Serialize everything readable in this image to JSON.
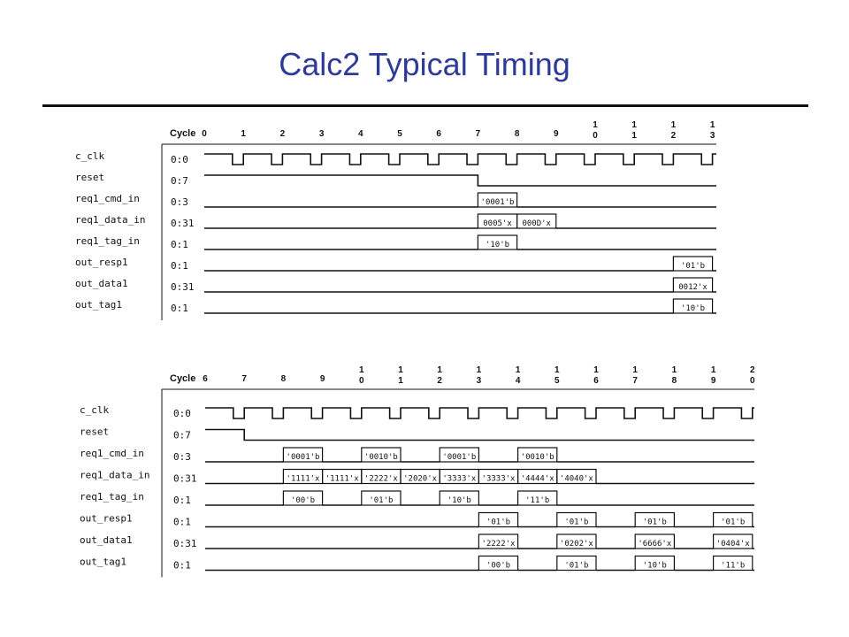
{
  "title": "Calc2 Typical Timing",
  "diagrams": [
    {
      "cycle_header": "Cycle",
      "cycles": [
        "0",
        "1",
        "2",
        "3",
        "4",
        "5",
        "6",
        "7",
        "8",
        "9",
        "10",
        "11",
        "12",
        "13"
      ],
      "signals": [
        {
          "name": "c_clk",
          "width": "0:0",
          "kind": "clock"
        },
        {
          "name": "reset",
          "width": "0:7",
          "kind": "level",
          "high_until_cycle": 7
        },
        {
          "name": "req1_cmd_in",
          "width": "0:3",
          "kind": "bus",
          "values": [
            {
              "start": 7,
              "end": 8,
              "label": "'0001'b"
            }
          ]
        },
        {
          "name": "req1_data_in",
          "width": "0:31",
          "kind": "bus",
          "values": [
            {
              "start": 7,
              "end": 8,
              "label": "0005'x"
            },
            {
              "start": 8,
              "end": 9,
              "label": "000D'x"
            }
          ]
        },
        {
          "name": "req1_tag_in",
          "width": "0:1",
          "kind": "bus",
          "values": [
            {
              "start": 7,
              "end": 8,
              "label": "'10'b"
            }
          ]
        },
        {
          "name": "out_resp1",
          "width": "0:1",
          "kind": "bus",
          "values": [
            {
              "start": 12,
              "end": 13,
              "label": "'01'b"
            }
          ]
        },
        {
          "name": "out_data1",
          "width": "0:31",
          "kind": "bus",
          "values": [
            {
              "start": 12,
              "end": 13,
              "label": "0012'x"
            }
          ]
        },
        {
          "name": "out_tag1",
          "width": "0:1",
          "kind": "bus",
          "values": [
            {
              "start": 12,
              "end": 13,
              "label": "'10'b"
            }
          ]
        }
      ]
    },
    {
      "cycle_header": "Cycle",
      "cycles": [
        "6",
        "7",
        "8",
        "9",
        "10",
        "11",
        "12",
        "13",
        "14",
        "15",
        "16",
        "17",
        "18",
        "19",
        "20"
      ],
      "signals": [
        {
          "name": "c_clk",
          "width": "0:0",
          "kind": "clock"
        },
        {
          "name": "reset",
          "width": "0:7",
          "kind": "level",
          "high_until_cycle": 7
        },
        {
          "name": "req1_cmd_in",
          "width": "0:3",
          "kind": "bus",
          "values": [
            {
              "start": 8,
              "end": 9,
              "label": "'0001'b"
            },
            {
              "start": 10,
              "end": 11,
              "label": "'0010'b"
            },
            {
              "start": 12,
              "end": 13,
              "label": "'0001'b"
            },
            {
              "start": 14,
              "end": 15,
              "label": "'0010'b"
            }
          ]
        },
        {
          "name": "req1_data_in",
          "width": "0:31",
          "kind": "bus",
          "values": [
            {
              "start": 8,
              "end": 9,
              "label": "'1111'x"
            },
            {
              "start": 9,
              "end": 10,
              "label": "'1111'x"
            },
            {
              "start": 10,
              "end": 11,
              "label": "'2222'x"
            },
            {
              "start": 11,
              "end": 12,
              "label": "'2020'x"
            },
            {
              "start": 12,
              "end": 13,
              "label": "'3333'x"
            },
            {
              "start": 13,
              "end": 14,
              "label": "'3333'x"
            },
            {
              "start": 14,
              "end": 15,
              "label": "'4444'x"
            },
            {
              "start": 15,
              "end": 16,
              "label": "'4040'x"
            }
          ]
        },
        {
          "name": "req1_tag_in",
          "width": "0:1",
          "kind": "bus",
          "values": [
            {
              "start": 8,
              "end": 9,
              "label": "'00'b"
            },
            {
              "start": 10,
              "end": 11,
              "label": "'01'b"
            },
            {
              "start": 12,
              "end": 13,
              "label": "'10'b"
            },
            {
              "start": 14,
              "end": 15,
              "label": "'11'b"
            }
          ]
        },
        {
          "name": "out_resp1",
          "width": "0:1",
          "kind": "bus",
          "values": [
            {
              "start": 13,
              "end": 14,
              "label": "'01'b"
            },
            {
              "start": 15,
              "end": 16,
              "label": "'01'b"
            },
            {
              "start": 17,
              "end": 18,
              "label": "'01'b"
            },
            {
              "start": 19,
              "end": 20,
              "label": "'01'b"
            }
          ]
        },
        {
          "name": "out_data1",
          "width": "0:31",
          "kind": "bus",
          "values": [
            {
              "start": 13,
              "end": 14,
              "label": "'2222'x"
            },
            {
              "start": 15,
              "end": 16,
              "label": "'0202'x"
            },
            {
              "start": 17,
              "end": 18,
              "label": "'6666'x"
            },
            {
              "start": 19,
              "end": 20,
              "label": "'0404'x"
            }
          ]
        },
        {
          "name": "out_tag1",
          "width": "0:1",
          "kind": "bus",
          "values": [
            {
              "start": 13,
              "end": 14,
              "label": "'00'b"
            },
            {
              "start": 15,
              "end": 16,
              "label": "'01'b"
            },
            {
              "start": 17,
              "end": 18,
              "label": "'10'b"
            },
            {
              "start": 19,
              "end": 20,
              "label": "'11'b"
            }
          ]
        }
      ]
    }
  ]
}
